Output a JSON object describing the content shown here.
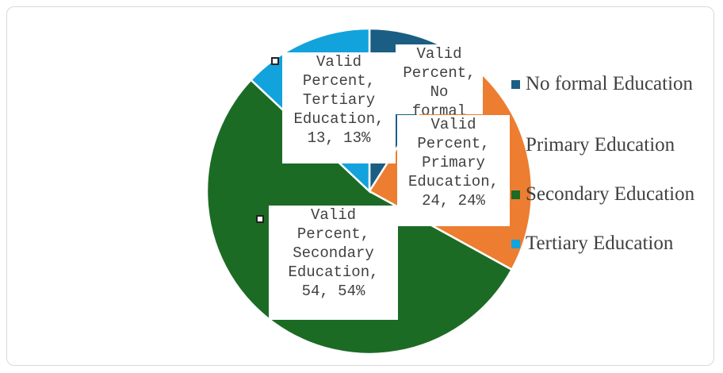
{
  "chart_data": {
    "type": "pie",
    "series_name": "Valid Percent",
    "categories": [
      "No formal Education",
      "Primary Education",
      "Secondary Education",
      "Tertiary Education"
    ],
    "values": [
      9,
      24,
      54,
      13
    ],
    "colors": [
      "#1b5e83",
      "#ed7d31",
      "#1c6b25",
      "#12a3dc"
    ],
    "data_labels": [
      "Valid\nPercent, No\nformal\nEducation, 9, 9%",
      "Valid\nPercent,\nPrimary\nEducation,\n24, 24%",
      "Valid\nPercent,\nSecondary\nEducation,\n54, 54%",
      "Valid\nPercent,\nTertiary\nEducation,\n13, 13%"
    ],
    "legend": {
      "position": "right",
      "items": [
        "No formal Education",
        "Primary Education",
        "Secondary Education",
        "Tertiary Education"
      ]
    }
  }
}
